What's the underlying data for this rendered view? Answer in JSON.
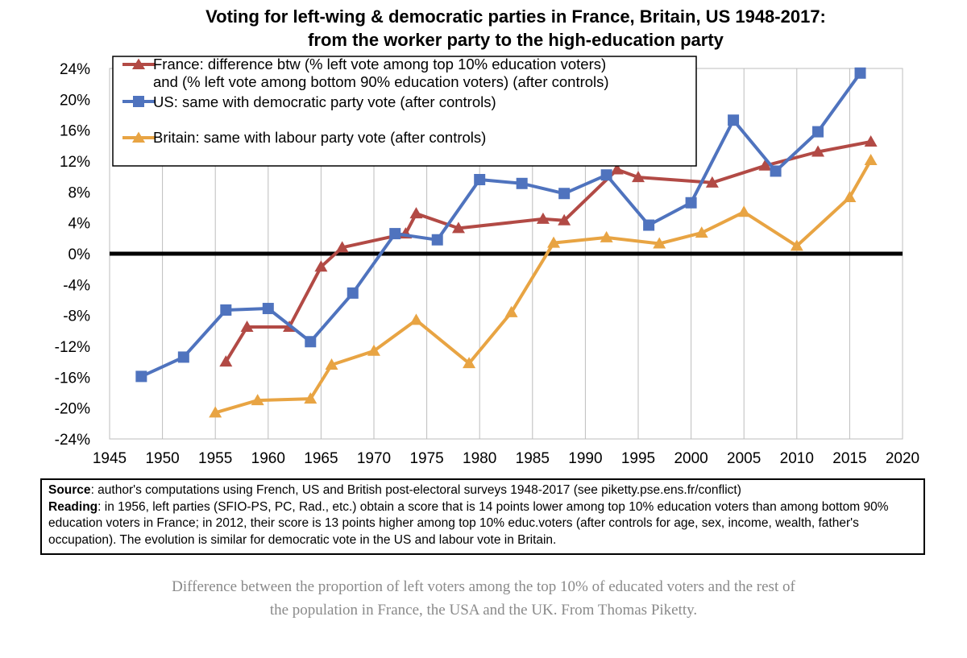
{
  "chart_data": {
    "type": "line",
    "title_line1": "Voting for left-wing & democratic parties in France, Britain, US 1948-2017:",
    "title_line2": "from the worker party to the high-education party",
    "xlabel": "",
    "ylabel": "",
    "xlim": [
      1945,
      2020
    ],
    "ylim": [
      -24,
      24
    ],
    "x_ticks": [
      1945,
      1950,
      1955,
      1960,
      1965,
      1970,
      1975,
      1980,
      1985,
      1990,
      1995,
      2000,
      2005,
      2010,
      2015,
      2020
    ],
    "y_ticks": [
      -24,
      -20,
      -16,
      -12,
      -8,
      -4,
      0,
      4,
      8,
      12,
      16,
      20,
      24
    ],
    "y_tick_labels": [
      "-24%",
      "-20%",
      "-16%",
      "-12%",
      "-8%",
      "-4%",
      "0%",
      "4%",
      "8%",
      "12%",
      "16%",
      "20%",
      "24%"
    ],
    "grid": "vertical",
    "legend_position": "top-left",
    "series": [
      {
        "name": "France",
        "legend_line1": "France: difference btw (% left vote among top 10% education voters)",
        "legend_line2": "and (% left vote among bottom 90% education voters) (after controls)",
        "color": "#B24A45",
        "marker": "triangle",
        "x": [
          1956,
          1958,
          1962,
          1965,
          1967,
          1973,
          1974,
          1978,
          1986,
          1988,
          1993,
          1995,
          2002,
          2007,
          2012,
          2017
        ],
        "y": [
          -14,
          -9.5,
          -9.5,
          -1.7,
          0.8,
          2.6,
          5.2,
          3.3,
          4.5,
          4.3,
          10.9,
          9.9,
          9.2,
          11.4,
          13.2,
          14.5
        ]
      },
      {
        "name": "US",
        "legend_line1": "US: same with democratic party vote (after controls)",
        "color": "#4F73BE",
        "marker": "square",
        "x": [
          1948,
          1952,
          1956,
          1960,
          1964,
          1968,
          1972,
          1976,
          1980,
          1984,
          1988,
          1992,
          1996,
          2000,
          2004,
          2008,
          2012,
          2016
        ],
        "y": [
          -15.9,
          -13.4,
          -7.3,
          -7.1,
          -11.4,
          -5.1,
          2.6,
          1.8,
          9.6,
          9.1,
          7.8,
          10.2,
          3.7,
          6.6,
          17.3,
          10.7,
          15.8,
          23.4
        ]
      },
      {
        "name": "Britain",
        "legend_line1": "Britain: same with labour party vote (after controls)",
        "color": "#E8A443",
        "marker": "triangle",
        "x": [
          1955,
          1959,
          1964,
          1966,
          1970,
          1974,
          1979,
          1983,
          1987,
          1992,
          1997,
          2001,
          2005,
          2010,
          2015,
          2017
        ],
        "y": [
          -20.6,
          -19,
          -18.8,
          -14.4,
          -12.6,
          -8.6,
          -14.2,
          -7.6,
          1.4,
          2.1,
          1.3,
          2.7,
          5.4,
          1,
          7.3,
          12.1
        ]
      }
    ]
  },
  "source_box": {
    "source_label": "Source",
    "source_text": ": author's computations using French, US and British post-electoral surveys 1948-2017 (see piketty.pse.ens.fr/conflict)",
    "reading_label": "Reading",
    "reading_text": ": in 1956, left parties (SFIO-PS, PC, Rad., etc.) obtain a score that is 14 points lower among top 10% education voters than among bottom 90% education voters in France; in 2012, their score is 13 points higher among top 10% educ.voters (after controls for age, sex, income, wealth, father's occupation). The evolution is similar for democratic vote in the US and labour vote in Britain."
  },
  "caption": "Difference between the proportion of left voters among the top 10% of educated voters and the rest of the population in France, the USA and the UK. From Thomas Piketty."
}
